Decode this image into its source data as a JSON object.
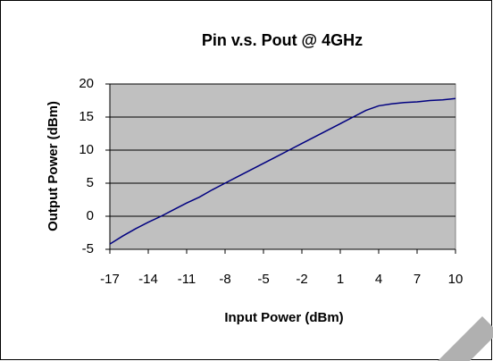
{
  "chart_data": {
    "type": "line",
    "title": "Pin v.s. Pout @ 4GHz",
    "x_label": "Input Power (dBm)",
    "y_label": "Output Power (dBm)",
    "x": [
      -17,
      -16,
      -15,
      -14,
      -13,
      -12,
      -11,
      -10,
      -9,
      -8,
      -7,
      -6,
      -5,
      -4,
      -3,
      -2,
      -1,
      0,
      1,
      2,
      3,
      4,
      5,
      6,
      7,
      8,
      9,
      10
    ],
    "series": [
      {
        "name": "Pout",
        "color": "#000080",
        "values": [
          -4.2,
          -3,
          -1.9,
          -0.9,
          0,
          1,
          2,
          2.9,
          4,
          5,
          6,
          7,
          8,
          9,
          10,
          11,
          12,
          13,
          14,
          15,
          16,
          16.7,
          17,
          17.2,
          17.3,
          17.5,
          17.6,
          17.8
        ]
      }
    ],
    "xlim": [
      -17,
      10
    ],
    "xticks": [
      -17,
      -14,
      -11,
      -8,
      -5,
      -2,
      1,
      4,
      7,
      10
    ],
    "ylim": [
      -5,
      20
    ],
    "yticks": [
      -5,
      0,
      5,
      10,
      15,
      20
    ],
    "grid": true,
    "plot_background": "#c0c0c0"
  }
}
